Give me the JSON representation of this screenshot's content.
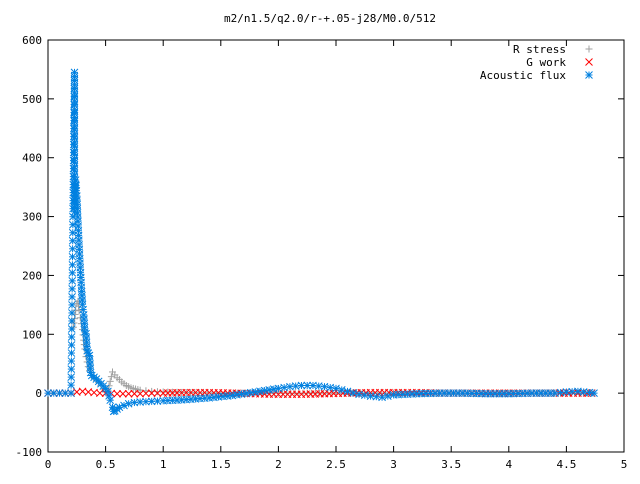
{
  "chart_data": {
    "type": "scatter",
    "title": "m2/n1.5/q2.0/r-+.05-j28/M0.0/512",
    "xlabel": "",
    "ylabel": "",
    "xlim": [
      0,
      5
    ],
    "ylim": [
      -100,
      600
    ],
    "x_ticks": [
      "0",
      "0.5",
      "1",
      "1.5",
      "2",
      "2.5",
      "3",
      "3.5",
      "4",
      "4.5",
      "5"
    ],
    "y_ticks": [
      "-100",
      "0",
      "100",
      "200",
      "300",
      "400",
      "500",
      "600"
    ],
    "x_tick_values": [
      0,
      0.5,
      1,
      1.5,
      2,
      2.5,
      3,
      3.5,
      4,
      4.5,
      5
    ],
    "y_tick_values": [
      -100,
      0,
      100,
      200,
      300,
      400,
      500,
      600
    ],
    "grid": false,
    "legend_position": "top-right",
    "series": [
      {
        "name": "R stress",
        "marker": "plus",
        "color": "#a0a0a0",
        "points": [
          [
            0.22,
            112
          ],
          [
            0.24,
            141
          ],
          [
            0.25,
            152
          ],
          [
            0.26,
            156
          ],
          [
            0.27,
            140
          ],
          [
            0.28,
            128
          ],
          [
            0.3,
            108
          ],
          [
            0.31,
            90
          ],
          [
            0.32,
            75
          ],
          [
            0.33,
            62
          ],
          [
            0.34,
            53
          ],
          [
            0.35,
            45
          ],
          [
            0.36,
            38
          ],
          [
            0.38,
            30
          ],
          [
            0.4,
            26
          ],
          [
            0.42,
            22
          ],
          [
            0.44,
            18
          ],
          [
            0.46,
            13
          ],
          [
            0.48,
            7
          ],
          [
            0.5,
            2
          ],
          [
            0.52,
            5
          ],
          [
            0.54,
            20
          ],
          [
            0.56,
            36
          ],
          [
            0.58,
            31
          ],
          [
            0.6,
            26
          ],
          [
            0.62,
            23
          ],
          [
            0.64,
            19
          ],
          [
            0.66,
            16
          ],
          [
            0.68,
            13
          ],
          [
            0.7,
            11
          ],
          [
            0.72,
            9
          ],
          [
            0.74,
            8
          ],
          [
            0.76,
            7
          ],
          [
            0.78,
            6
          ],
          [
            0.8,
            5
          ],
          [
            0.85,
            4
          ],
          [
            0.9,
            3
          ],
          [
            1.0,
            2
          ],
          [
            1.2,
            1
          ],
          [
            1.5,
            0
          ],
          [
            2.0,
            0
          ],
          [
            2.5,
            0
          ],
          [
            3.0,
            0
          ],
          [
            3.5,
            0
          ],
          [
            4.0,
            0
          ],
          [
            4.5,
            0
          ],
          [
            4.72,
            0
          ]
        ]
      },
      {
        "name": "G work",
        "marker": "cross",
        "color": "#ff0000",
        "points": [
          [
            0.0,
            0
          ],
          [
            0.1,
            0
          ],
          [
            0.2,
            0
          ],
          [
            0.25,
            2
          ],
          [
            0.3,
            3
          ],
          [
            0.35,
            2
          ],
          [
            0.4,
            1
          ],
          [
            0.45,
            0
          ],
          [
            0.5,
            0
          ],
          [
            0.6,
            -1
          ],
          [
            0.7,
            -1
          ],
          [
            0.8,
            -1
          ],
          [
            0.9,
            0
          ],
          [
            1.0,
            0
          ],
          [
            1.2,
            1
          ],
          [
            1.4,
            1
          ],
          [
            1.6,
            0
          ],
          [
            1.8,
            -1
          ],
          [
            2.0,
            -2
          ],
          [
            2.2,
            -2
          ],
          [
            2.4,
            -1
          ],
          [
            2.6,
            0
          ],
          [
            2.8,
            1
          ],
          [
            3.0,
            1
          ],
          [
            3.2,
            1
          ],
          [
            3.4,
            0
          ],
          [
            3.6,
            0
          ],
          [
            3.8,
            0
          ],
          [
            4.0,
            0
          ],
          [
            4.2,
            0
          ],
          [
            4.4,
            0
          ],
          [
            4.6,
            0
          ],
          [
            4.72,
            0
          ]
        ]
      },
      {
        "name": "Acoustic flux",
        "marker": "star",
        "color": "#0080e0",
        "points": [
          [
            0.0,
            0
          ],
          [
            0.1,
            0
          ],
          [
            0.2,
            0
          ],
          [
            0.23,
            545
          ],
          [
            0.23,
            308
          ],
          [
            0.24,
            362
          ],
          [
            0.25,
            335
          ],
          [
            0.26,
            292
          ],
          [
            0.27,
            252
          ],
          [
            0.28,
            213
          ],
          [
            0.29,
            180
          ],
          [
            0.3,
            151
          ],
          [
            0.31,
            133
          ],
          [
            0.32,
            104
          ],
          [
            0.33,
            101
          ],
          [
            0.34,
            72
          ],
          [
            0.35,
            68
          ],
          [
            0.36,
            64
          ],
          [
            0.37,
            35
          ],
          [
            0.38,
            30
          ],
          [
            0.4,
            27
          ],
          [
            0.42,
            24
          ],
          [
            0.44,
            20
          ],
          [
            0.46,
            16
          ],
          [
            0.48,
            12
          ],
          [
            0.5,
            8
          ],
          [
            0.52,
            3
          ],
          [
            0.54,
            -12
          ],
          [
            0.56,
            -24
          ],
          [
            0.57,
            -31
          ],
          [
            0.58,
            -30
          ],
          [
            0.6,
            -27
          ],
          [
            0.62,
            -24
          ],
          [
            0.66,
            -21
          ],
          [
            0.7,
            -18
          ],
          [
            0.75,
            -16
          ],
          [
            0.8,
            -15
          ],
          [
            0.9,
            -14
          ],
          [
            1.0,
            -13
          ],
          [
            1.2,
            -11
          ],
          [
            1.4,
            -8
          ],
          [
            1.6,
            -4
          ],
          [
            1.8,
            2
          ],
          [
            2.0,
            8
          ],
          [
            2.1,
            11
          ],
          [
            2.2,
            13
          ],
          [
            2.3,
            13
          ],
          [
            2.4,
            11
          ],
          [
            2.5,
            8
          ],
          [
            2.6,
            3
          ],
          [
            2.7,
            -2
          ],
          [
            2.8,
            -5
          ],
          [
            2.9,
            -7
          ],
          [
            3.0,
            -3
          ],
          [
            3.2,
            -1
          ],
          [
            3.4,
            0
          ],
          [
            3.6,
            0
          ],
          [
            3.8,
            -1
          ],
          [
            4.0,
            -1
          ],
          [
            4.2,
            0
          ],
          [
            4.4,
            0
          ],
          [
            4.5,
            2
          ],
          [
            4.6,
            3
          ],
          [
            4.7,
            1
          ],
          [
            4.74,
            0
          ]
        ]
      }
    ]
  }
}
